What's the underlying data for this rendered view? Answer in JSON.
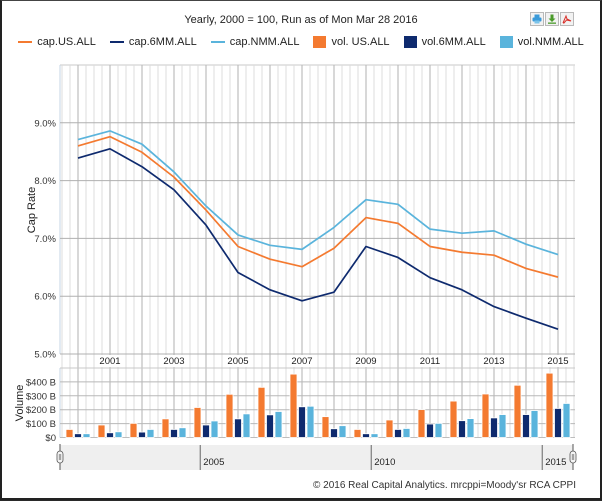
{
  "header": {
    "title": "Yearly, 2000 = 100, Run as of Mon Mar 28 2016",
    "icons": [
      {
        "name": "print-icon",
        "color": "#3a9ad9"
      },
      {
        "name": "download-icon",
        "color": "#4a9a2a"
      },
      {
        "name": "pdf-icon",
        "color": "#d9302a"
      }
    ]
  },
  "legend": [
    {
      "label": "cap.US.ALL",
      "kind": "line",
      "color": "#f47a30"
    },
    {
      "label": "cap.6MM.ALL",
      "kind": "line",
      "color": "#0e2a6e"
    },
    {
      "label": "cap.NMM.ALL",
      "kind": "line",
      "color": "#5ab4dc"
    },
    {
      "label": "vol. US.ALL",
      "kind": "box",
      "color": "#f47a30"
    },
    {
      "label": "vol.6MM.ALL",
      "kind": "box",
      "color": "#0e2a6e"
    },
    {
      "label": "vol.NMM.ALL",
      "kind": "box",
      "color": "#5ab4dc"
    }
  ],
  "footer": "© 2016 Real Capital Analytics. mrcppi=Moody'sr RCA CPPI",
  "chart_data": [
    {
      "type": "line",
      "title": "Yearly, 2000 = 100, Run as of Mon Mar 28 2016",
      "xlabel": "",
      "ylabel": "Cap Rate",
      "x": [
        2000,
        2001,
        2002,
        2003,
        2004,
        2005,
        2006,
        2007,
        2008,
        2009,
        2010,
        2011,
        2012,
        2013,
        2014,
        2015
      ],
      "xticks": [
        "2001",
        "2003",
        "2005",
        "2007",
        "2009",
        "2011",
        "2013",
        "2015"
      ],
      "xtick_values": [
        2001,
        2003,
        2005,
        2007,
        2009,
        2011,
        2013,
        2015
      ],
      "ylim": [
        5.0,
        10.0
      ],
      "yticks": [
        5.0,
        6.0,
        7.0,
        8.0,
        9.0
      ],
      "ytick_labels": [
        "5.0%",
        "6.0%",
        "7.0%",
        "8.0%",
        "9.0%"
      ],
      "grid": true,
      "legend_position": "top-center",
      "series": [
        {
          "name": "cap.US.ALL",
          "color": "#f47a30",
          "values": [
            8.6,
            8.76,
            8.49,
            8.06,
            7.49,
            6.86,
            6.64,
            6.51,
            6.83,
            7.36,
            7.26,
            6.86,
            6.76,
            6.71,
            6.48,
            6.33
          ]
        },
        {
          "name": "cap.6MM.ALL",
          "color": "#0e2a6e",
          "values": [
            8.39,
            8.55,
            8.24,
            7.84,
            7.23,
            6.41,
            6.11,
            5.92,
            6.07,
            6.86,
            6.67,
            6.32,
            6.11,
            5.82,
            5.62,
            5.43
          ]
        },
        {
          "name": "cap.NMM.ALL",
          "color": "#5ab4dc",
          "values": [
            8.71,
            8.86,
            8.63,
            8.15,
            7.56,
            7.06,
            6.88,
            6.81,
            7.19,
            7.67,
            7.59,
            7.16,
            7.09,
            7.13,
            6.9,
            6.72
          ]
        }
      ]
    },
    {
      "type": "bar",
      "ylabel": "Volume",
      "x": [
        2000,
        2001,
        2002,
        2003,
        2004,
        2005,
        2006,
        2007,
        2008,
        2009,
        2010,
        2011,
        2012,
        2013,
        2014,
        2015
      ],
      "ylim": [
        0,
        500
      ],
      "yticks": [
        0,
        100,
        200,
        300,
        400
      ],
      "ytick_labels": [
        "$0",
        "$100 B",
        "$200 B",
        "$300 B",
        "$400 B"
      ],
      "unit": "$B",
      "grid": true,
      "series": [
        {
          "name": "vol. US.ALL",
          "color": "#f47a30",
          "values": [
            58,
            90,
            102,
            134,
            216,
            311,
            361,
            456,
            150,
            58,
            126,
            201,
            262,
            313,
            376,
            463
          ]
        },
        {
          "name": "vol.6MM.ALL",
          "color": "#0e2a6e",
          "values": [
            27,
            34,
            39,
            58,
            90,
            134,
            163,
            221,
            63,
            27,
            58,
            97,
            121,
            141,
            165,
            209
          ]
        },
        {
          "name": "vol.NMM.ALL",
          "color": "#5ab4dc",
          "values": [
            27,
            41,
            58,
            70,
            119,
            170,
            187,
            225,
            85,
            27,
            65,
            102,
            136,
            165,
            194,
            245
          ]
        }
      ]
    }
  ],
  "navigator": {
    "ticks": [
      "2005",
      "2010",
      "2015"
    ],
    "tick_values": [
      2005,
      2010,
      2015
    ],
    "range": [
      2000,
      2015
    ]
  }
}
